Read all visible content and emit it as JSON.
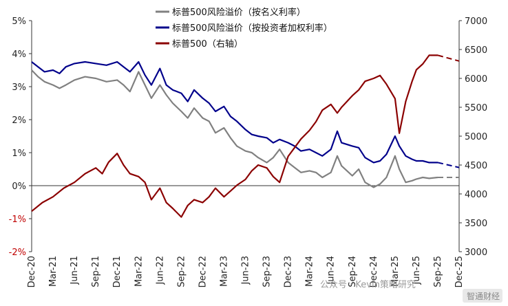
{
  "chart_data": {
    "type": "line",
    "legend_placement": "top-center",
    "grid": false,
    "left_axis": {
      "ylim": [
        -2,
        5
      ],
      "ticks": [
        {
          "v": -2,
          "label": "-2%"
        },
        {
          "v": -1,
          "label": "-1%"
        },
        {
          "v": 0,
          "label": "0%"
        },
        {
          "v": 1,
          "label": "1%"
        },
        {
          "v": 2,
          "label": "2%"
        },
        {
          "v": 3,
          "label": "3%"
        },
        {
          "v": 4,
          "label": "4%"
        },
        {
          "v": 5,
          "label": "5%"
        }
      ],
      "negative_color": "#c00000"
    },
    "right_axis": {
      "ylim": [
        3000,
        7000
      ],
      "ticks": [
        {
          "v": 3000,
          "label": "3000"
        },
        {
          "v": 3500,
          "label": "3500"
        },
        {
          "v": 4000,
          "label": "4000"
        },
        {
          "v": 4500,
          "label": "4500"
        },
        {
          "v": 5000,
          "label": "5000"
        },
        {
          "v": 5500,
          "label": "5500"
        },
        {
          "v": 6000,
          "label": "6000"
        },
        {
          "v": 6500,
          "label": "6500"
        },
        {
          "v": 7000,
          "label": "7000"
        }
      ]
    },
    "x_ticks": [
      "Dec-20",
      "Mar-21",
      "Jun-21",
      "Sep-21",
      "Dec-21",
      "Mar-22",
      "Jun-22",
      "Sep-22",
      "Dec-22",
      "Mar-23",
      "Jun-23",
      "Sep-23",
      "Dec-23",
      "Mar-24",
      "Jun-24",
      "Sep-24",
      "Dec-24",
      "Mar-25",
      "Jun-25",
      "Sep-25",
      "Dec-25"
    ],
    "series": [
      {
        "name": "标普500风险溢价（按名义利率）",
        "color": "#808080",
        "axis": "left",
        "points": [
          [
            0,
            3.5
          ],
          [
            0.3,
            3.3
          ],
          [
            0.6,
            3.15
          ],
          [
            1,
            3.05
          ],
          [
            1.3,
            2.95
          ],
          [
            1.6,
            3.05
          ],
          [
            2,
            3.2
          ],
          [
            2.5,
            3.3
          ],
          [
            3,
            3.25
          ],
          [
            3.5,
            3.15
          ],
          [
            4,
            3.2
          ],
          [
            4.3,
            3.05
          ],
          [
            4.6,
            2.85
          ],
          [
            5,
            3.45
          ],
          [
            5.3,
            3.05
          ],
          [
            5.6,
            2.65
          ],
          [
            6,
            3.05
          ],
          [
            6.3,
            2.75
          ],
          [
            6.6,
            2.5
          ],
          [
            7,
            2.25
          ],
          [
            7.3,
            2.05
          ],
          [
            7.6,
            2.35
          ],
          [
            8,
            2.05
          ],
          [
            8.3,
            1.95
          ],
          [
            8.6,
            1.6
          ],
          [
            9,
            1.75
          ],
          [
            9.3,
            1.45
          ],
          [
            9.6,
            1.2
          ],
          [
            10,
            1.05
          ],
          [
            10.3,
            1.0
          ],
          [
            10.6,
            0.85
          ],
          [
            11,
            0.7
          ],
          [
            11.3,
            0.85
          ],
          [
            11.6,
            1.1
          ],
          [
            12,
            0.7
          ],
          [
            12.3,
            0.55
          ],
          [
            12.6,
            0.4
          ],
          [
            13,
            0.45
          ],
          [
            13.3,
            0.4
          ],
          [
            13.6,
            0.25
          ],
          [
            14,
            0.4
          ],
          [
            14.3,
            0.9
          ],
          [
            14.5,
            0.6
          ],
          [
            15,
            0.3
          ],
          [
            15.3,
            0.5
          ],
          [
            15.6,
            0.1
          ],
          [
            16,
            -0.05
          ],
          [
            16.3,
            0.05
          ],
          [
            16.6,
            0.25
          ],
          [
            17,
            0.9
          ],
          [
            17.2,
            0.5
          ],
          [
            17.5,
            0.1
          ],
          [
            17.8,
            0.15
          ],
          [
            18,
            0.2
          ],
          [
            18.3,
            0.25
          ],
          [
            18.6,
            0.22
          ],
          [
            19,
            0.25
          ]
        ],
        "forecast": [
          [
            19,
            0.25
          ],
          [
            20,
            0.25
          ]
        ]
      },
      {
        "name": "标普500风险溢价（按投资者加权利率）",
        "color": "#00008b",
        "axis": "left",
        "points": [
          [
            0,
            3.75
          ],
          [
            0.3,
            3.6
          ],
          [
            0.6,
            3.45
          ],
          [
            1,
            3.5
          ],
          [
            1.3,
            3.4
          ],
          [
            1.6,
            3.6
          ],
          [
            2,
            3.7
          ],
          [
            2.5,
            3.75
          ],
          [
            3,
            3.7
          ],
          [
            3.5,
            3.65
          ],
          [
            4,
            3.75
          ],
          [
            4.3,
            3.6
          ],
          [
            4.6,
            3.45
          ],
          [
            5,
            3.75
          ],
          [
            5.3,
            3.35
          ],
          [
            5.6,
            3.05
          ],
          [
            6,
            3.55
          ],
          [
            6.3,
            3.05
          ],
          [
            6.6,
            2.9
          ],
          [
            7,
            2.8
          ],
          [
            7.3,
            2.55
          ],
          [
            7.6,
            2.9
          ],
          [
            8,
            2.65
          ],
          [
            8.3,
            2.5
          ],
          [
            8.6,
            2.25
          ],
          [
            9,
            2.4
          ],
          [
            9.3,
            2.1
          ],
          [
            9.6,
            1.95
          ],
          [
            10,
            1.7
          ],
          [
            10.3,
            1.55
          ],
          [
            10.6,
            1.5
          ],
          [
            11,
            1.45
          ],
          [
            11.3,
            1.3
          ],
          [
            11.6,
            1.4
          ],
          [
            12,
            1.3
          ],
          [
            12.3,
            1.2
          ],
          [
            12.6,
            1.05
          ],
          [
            13,
            1.1
          ],
          [
            13.3,
            1.0
          ],
          [
            13.6,
            0.9
          ],
          [
            14,
            1.1
          ],
          [
            14.3,
            1.65
          ],
          [
            14.5,
            1.3
          ],
          [
            15,
            1.2
          ],
          [
            15.3,
            1.15
          ],
          [
            15.6,
            0.85
          ],
          [
            16,
            0.7
          ],
          [
            16.3,
            0.75
          ],
          [
            16.6,
            0.95
          ],
          [
            17,
            1.5
          ],
          [
            17.2,
            1.2
          ],
          [
            17.5,
            0.9
          ],
          [
            17.8,
            0.8
          ],
          [
            18,
            0.75
          ],
          [
            18.3,
            0.75
          ],
          [
            18.6,
            0.7
          ],
          [
            19,
            0.7
          ]
        ],
        "forecast": [
          [
            19,
            0.7
          ],
          [
            20,
            0.55
          ]
        ]
      },
      {
        "name": "标普500（右轴）",
        "color": "#8b0000",
        "axis": "right",
        "points": [
          [
            0,
            3700
          ],
          [
            0.5,
            3850
          ],
          [
            1,
            3950
          ],
          [
            1.5,
            4100
          ],
          [
            2,
            4200
          ],
          [
            2.5,
            4350
          ],
          [
            3,
            4450
          ],
          [
            3.3,
            4350
          ],
          [
            3.6,
            4550
          ],
          [
            4,
            4700
          ],
          [
            4.3,
            4500
          ],
          [
            4.6,
            4350
          ],
          [
            5,
            4300
          ],
          [
            5.3,
            4200
          ],
          [
            5.6,
            3900
          ],
          [
            6,
            4100
          ],
          [
            6.3,
            3850
          ],
          [
            6.6,
            3750
          ],
          [
            7,
            3600
          ],
          [
            7.3,
            3800
          ],
          [
            7.6,
            3900
          ],
          [
            8,
            3850
          ],
          [
            8.3,
            3950
          ],
          [
            8.6,
            4100
          ],
          [
            9,
            3950
          ],
          [
            9.3,
            4050
          ],
          [
            9.6,
            4150
          ],
          [
            10,
            4250
          ],
          [
            10.3,
            4400
          ],
          [
            10.6,
            4500
          ],
          [
            11,
            4450
          ],
          [
            11.3,
            4300
          ],
          [
            11.6,
            4200
          ],
          [
            12,
            4650
          ],
          [
            12.3,
            4800
          ],
          [
            12.6,
            4950
          ],
          [
            13,
            5100
          ],
          [
            13.3,
            5250
          ],
          [
            13.6,
            5450
          ],
          [
            14,
            5550
          ],
          [
            14.3,
            5400
          ],
          [
            14.5,
            5500
          ],
          [
            15,
            5700
          ],
          [
            15.3,
            5800
          ],
          [
            15.6,
            5950
          ],
          [
            16,
            6000
          ],
          [
            16.3,
            6050
          ],
          [
            16.6,
            5900
          ],
          [
            17,
            5650
          ],
          [
            17.2,
            5050
          ],
          [
            17.5,
            5600
          ],
          [
            17.8,
            5950
          ],
          [
            18,
            6150
          ],
          [
            18.3,
            6250
          ],
          [
            18.6,
            6400
          ],
          [
            19,
            6400
          ]
        ],
        "forecast": [
          [
            19,
            6400
          ],
          [
            20,
            6300
          ]
        ]
      }
    ]
  },
  "watermark": {
    "text": "公众号 · Kevin策略研究",
    "badge": "智通财经"
  }
}
